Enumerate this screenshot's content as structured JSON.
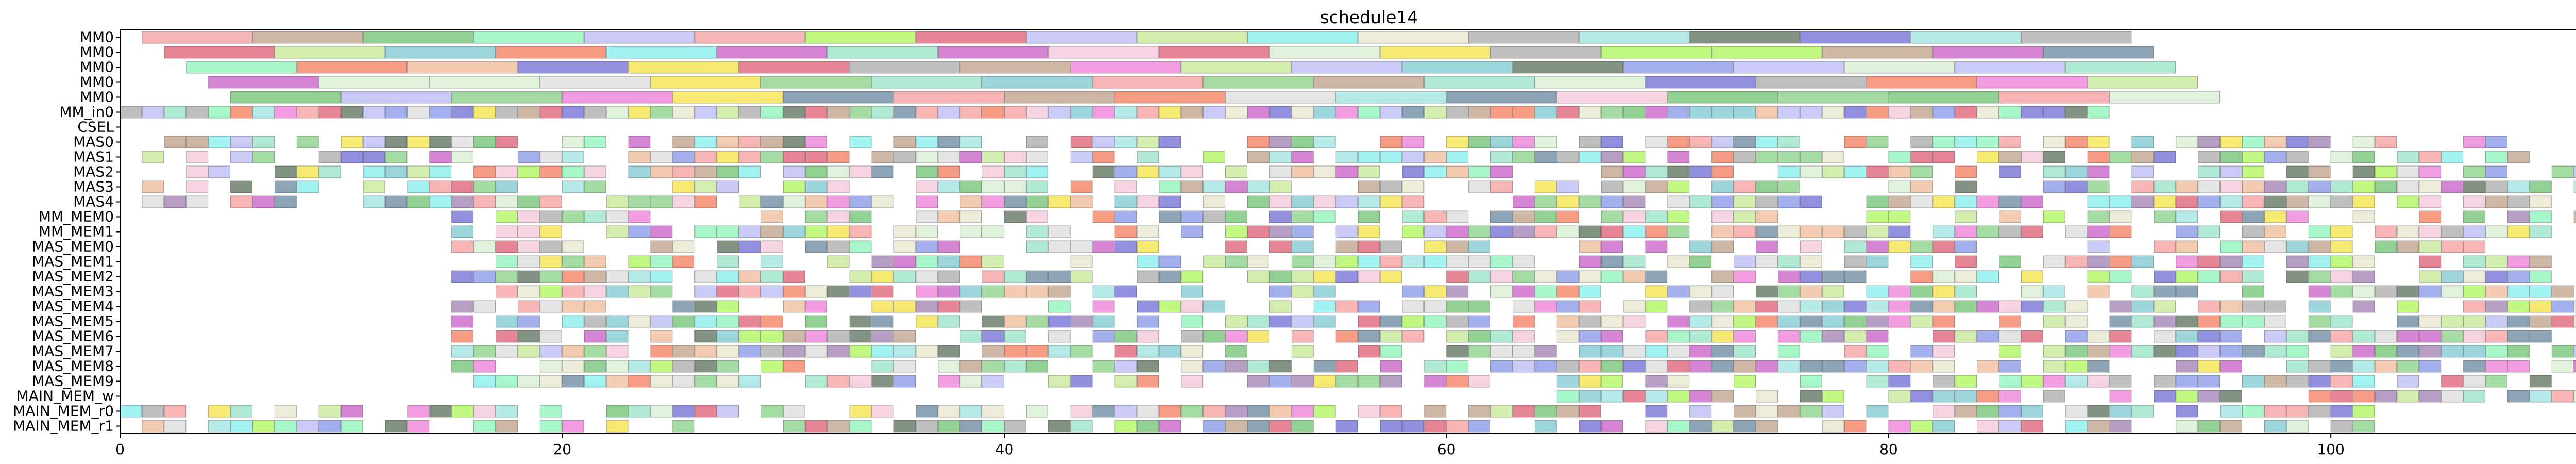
{
  "chart_data": {
    "type": "gantt",
    "title": "schedule14",
    "xlabel": "",
    "ylabel": "",
    "xlim": [
      0,
      113
    ],
    "x_ticks": [
      0,
      20,
      40,
      60,
      80,
      100
    ],
    "grid": false,
    "legend": "none",
    "rows": [
      "MM0",
      "MM0",
      "MM0",
      "MM0",
      "MM0",
      "MM_in0",
      "CSEL",
      "MAS0",
      "MAS1",
      "MAS2",
      "MAS3",
      "MAS4",
      "MM_MEM0",
      "MM_MEM1",
      "MAS_MEM0",
      "MAS_MEM1",
      "MAS_MEM2",
      "MAS_MEM3",
      "MAS_MEM4",
      "MAS_MEM5",
      "MAS_MEM6",
      "MAS_MEM7",
      "MAS_MEM8",
      "MAS_MEM9",
      "MAIN_MEM_w",
      "MAIN_MEM_r0",
      "MAIN_MEM_r1"
    ],
    "row_spans": [
      {
        "row": 0,
        "start": 1,
        "end": 91,
        "slot": 5
      },
      {
        "row": 1,
        "start": 2,
        "end": 92,
        "slot": 5
      },
      {
        "row": 2,
        "start": 3,
        "end": 93,
        "slot": 5
      },
      {
        "row": 3,
        "start": 4,
        "end": 93,
        "slot": 5
      },
      {
        "row": 4,
        "start": 5,
        "end": 95,
        "slot": 5
      },
      {
        "row": 5,
        "start": 0,
        "end": 90,
        "slot": 1
      },
      {
        "row": 7,
        "start": 1,
        "end": 113,
        "slot": 1
      },
      {
        "row": 8,
        "start": 1,
        "end": 110,
        "slot": 1
      },
      {
        "row": 9,
        "start": 1,
        "end": 113,
        "slot": 1
      },
      {
        "row": 10,
        "start": 1,
        "end": 112,
        "slot": 1
      },
      {
        "row": 11,
        "start": 1,
        "end": 112,
        "slot": 1
      },
      {
        "row": 12,
        "start": 15,
        "end": 112,
        "slot": 1
      },
      {
        "row": 13,
        "start": 15,
        "end": 110,
        "slot": 1
      },
      {
        "row": 14,
        "start": 15,
        "end": 108,
        "slot": 1
      },
      {
        "row": 15,
        "start": 15,
        "end": 112,
        "slot": 1
      },
      {
        "row": 16,
        "start": 15,
        "end": 113,
        "slot": 1
      },
      {
        "row": 17,
        "start": 15,
        "end": 111,
        "slot": 1
      },
      {
        "row": 18,
        "start": 15,
        "end": 113,
        "slot": 1
      },
      {
        "row": 19,
        "start": 15,
        "end": 112,
        "slot": 1
      },
      {
        "row": 20,
        "start": 15,
        "end": 111,
        "slot": 1
      },
      {
        "row": 21,
        "start": 15,
        "end": 113,
        "slot": 1
      },
      {
        "row": 22,
        "start": 15,
        "end": 112,
        "slot": 1
      },
      {
        "row": 23,
        "start": 16,
        "end": 110,
        "slot": 1
      },
      {
        "row": 24,
        "start": 65,
        "end": 113,
        "slot": 1
      },
      {
        "row": 25,
        "start": 0,
        "end": 102,
        "slot": 1
      },
      {
        "row": 26,
        "start": 0,
        "end": 102,
        "slot": 1
      }
    ],
    "palette": [
      "#59c05a",
      "#7b4f96",
      "#5a6ee0",
      "#4bb3c0",
      "#8cf21c",
      "#7ad8d6",
      "#3b33c4",
      "#6fd8b2",
      "#a87b5b",
      "#dcdcb8",
      "#b41fb0",
      "#c8e8c0",
      "#f0d800",
      "#f04a1f",
      "#2e5a7a",
      "#e84ac8",
      "#1e3a1e",
      "#3aaa3a",
      "#f07878",
      "#a0a0f0",
      "#58e8e8",
      "#e8a070",
      "#8a8a8a",
      "#b0e070",
      "#d02040",
      "#f0b0c8",
      "#d0d0d0",
      "#60f0a0"
    ]
  }
}
